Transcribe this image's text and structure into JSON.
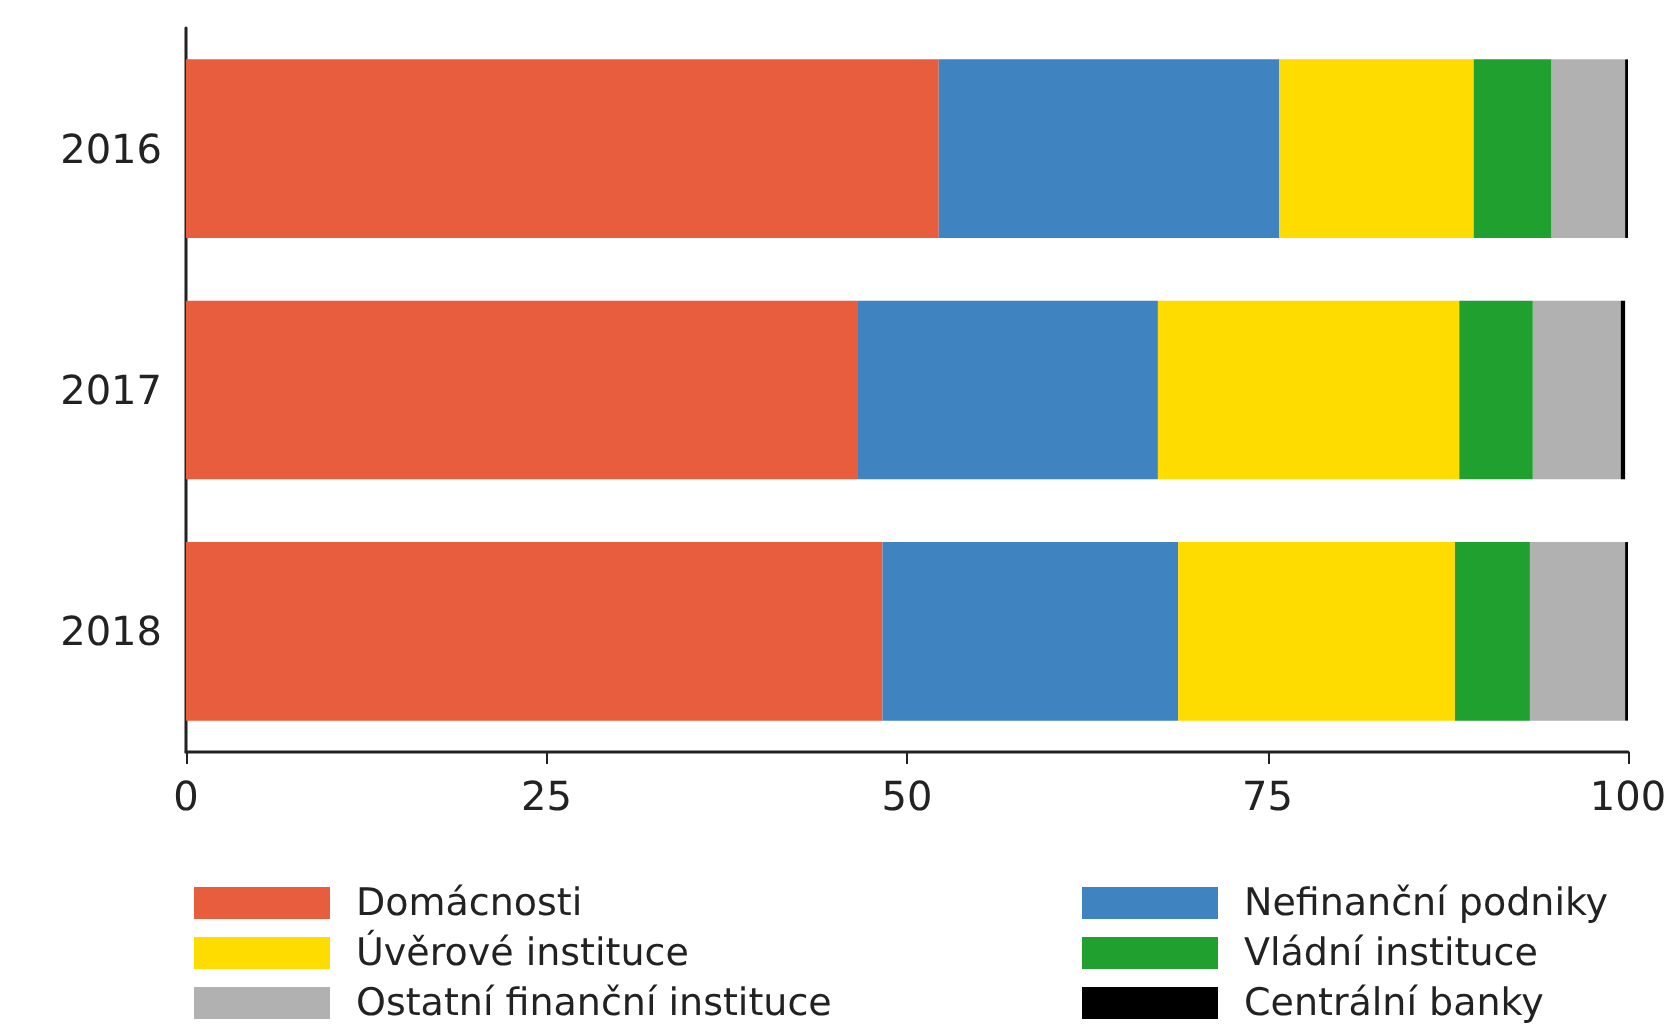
{
  "chart_data": {
    "type": "bar",
    "orientation": "horizontal",
    "stacked": true,
    "categories": [
      "2016",
      "2017",
      "2018"
    ],
    "series": [
      {
        "name": "Domácnosti",
        "color": "#e95d3f",
        "values": [
          52.2,
          46.6,
          48.3
        ]
      },
      {
        "name": "Nefinanční podniky",
        "color": "#3f84c0",
        "values": [
          23.6,
          20.8,
          20.5
        ]
      },
      {
        "name": "Úvěrové instituce",
        "color": "#ffdc00",
        "values": [
          13.5,
          20.9,
          19.2
        ]
      },
      {
        "name": "Vládní instituce",
        "color": "#1fa02f",
        "values": [
          5.4,
          5.1,
          5.2
        ]
      },
      {
        "name": "Ostatní finanční instituce",
        "color": "#b1b1b1",
        "values": [
          5.1,
          6.1,
          6.6
        ]
      },
      {
        "name": "Centrální banky",
        "color": "#000000",
        "values": [
          0.2,
          0.3,
          0.2
        ]
      }
    ],
    "xlim": [
      0,
      100
    ],
    "xticks": [
      0,
      25,
      50,
      75,
      100
    ],
    "grid": false,
    "legend": "bottom"
  }
}
